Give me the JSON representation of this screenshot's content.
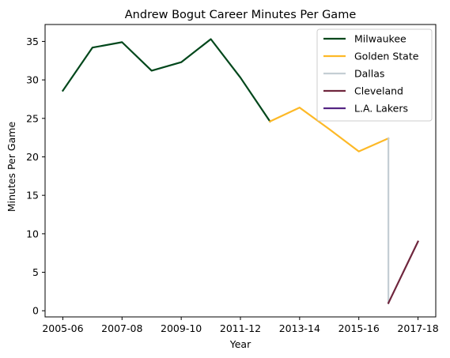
{
  "chart_data": {
    "type": "line",
    "title": "Andrew Bogut Career Minutes Per Game",
    "xlabel": "Year",
    "ylabel": "Minutes Per Game",
    "x_ticks": [
      "2005-06",
      "2007-08",
      "2009-10",
      "2011-12",
      "2013-14",
      "2015-16",
      "2017-18"
    ],
    "y_ticks": [
      0,
      5,
      10,
      15,
      20,
      25,
      30,
      35
    ],
    "ylim": [
      -0.8,
      37.2
    ],
    "grid": false,
    "legend_position": "top-right",
    "series": [
      {
        "name": "Milwaukee",
        "color": "#00471b",
        "x": [
          "2005-06",
          "2006-07",
          "2007-08",
          "2008-09",
          "2009-10",
          "2010-11",
          "2011-12",
          "2012-13"
        ],
        "values": [
          28.6,
          34.2,
          34.9,
          31.2,
          32.3,
          35.3,
          30.3,
          24.6
        ]
      },
      {
        "name": "Golden State",
        "color": "#fdb927",
        "x": [
          "2012-13",
          "2013-14",
          "2014-15",
          "2015-16",
          "2016-17"
        ],
        "values": [
          24.6,
          26.4,
          23.6,
          20.7,
          22.4
        ]
      },
      {
        "name": "Dallas",
        "color": "#c4ced4",
        "x": [
          "2016-17",
          "2016-17"
        ],
        "values": [
          22.4,
          1.0
        ]
      },
      {
        "name": "Cleveland",
        "color": "#6f263d",
        "x": [
          "2016-17",
          "2017-18"
        ],
        "values": [
          1.0,
          9.0
        ]
      },
      {
        "name": "L.A. Lakers",
        "color": "#552583",
        "x": [],
        "values": []
      }
    ]
  }
}
